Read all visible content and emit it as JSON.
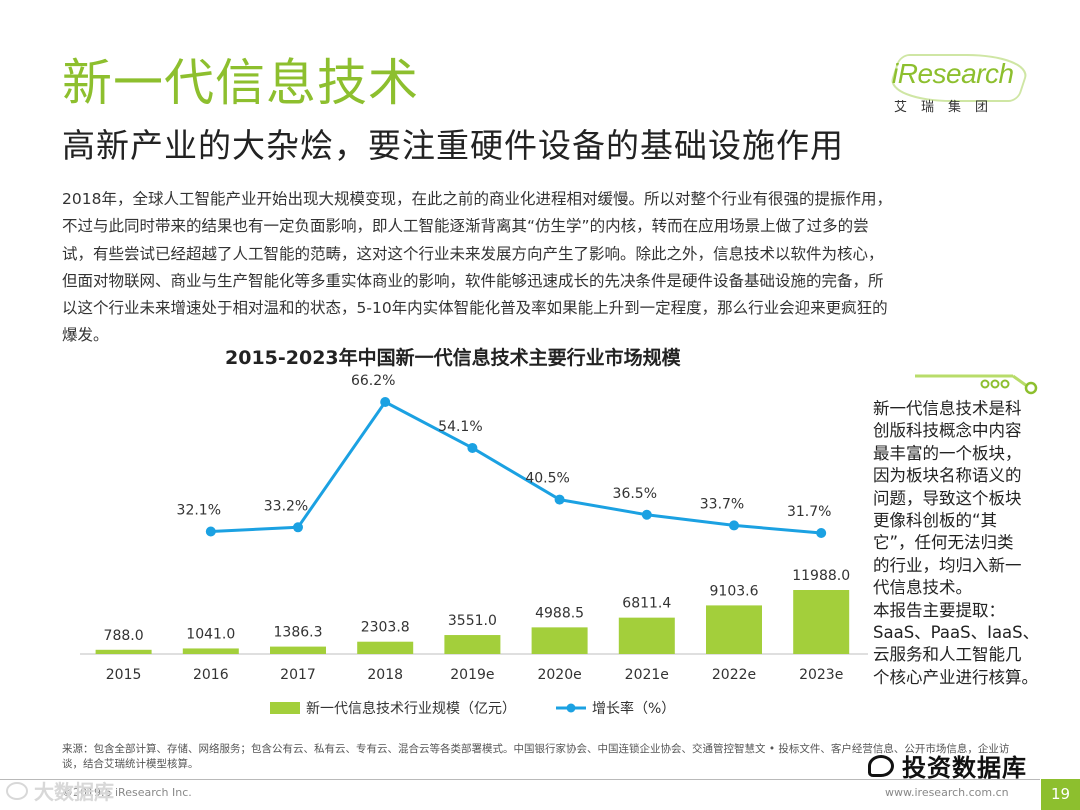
{
  "header": {
    "title": "新一代信息技术",
    "subtitle": "高新产业的大杂烩，要注重硬件设备的基础设施作用"
  },
  "logo": {
    "word": "iResearch",
    "sub": "艾瑞集团"
  },
  "intro": {
    "lines": [
      "2018年，全球人工智能产业开始出现大规模变现，在此之前的商业化进程相对缓慢。所以对整个行业有很强的提振作用，",
      "不过与此同时带来的结果也有一定负面影响，即人工智能逐渐背离其“仿生学”的内核，转而在应用场景上做了过多的尝",
      "试，有些尝试已经超越了人工智能的范畴，这对这个行业未来发展方向产生了影响。除此之外，信息技术以软件为核心，",
      "但面对物联网、商业与生产智能化等多重实体商业的影响，软件能够迅速成长的先决条件是硬件设备基础设施的完备，所",
      "以这个行业未来增速处于相对温和的状态，5-10年内实体智能化普及率如果能上升到一定程度，那么行业会迎来更疯狂的",
      "爆发。"
    ]
  },
  "chart_data": {
    "type": "bar",
    "title": "2015-2023年中国新一代信息技术主要行业市场规模",
    "categories": [
      "2015",
      "2016",
      "2017",
      "2018",
      "2019e",
      "2020e",
      "2021e",
      "2022e",
      "2023e"
    ],
    "series": [
      {
        "name": "新一代信息技术行业规模（亿元）",
        "type": "bar",
        "values": [
          788.0,
          1041.0,
          1386.3,
          2303.8,
          3551.0,
          4988.5,
          6811.4,
          9103.6,
          11988.0
        ],
        "labels": [
          "788.0",
          "1041.0",
          "1386.3",
          "2303.8",
          "3551.0",
          "4988.5",
          "6811.4",
          "9103.6",
          "11988.0"
        ]
      },
      {
        "name": "增长率（%）",
        "type": "line",
        "values": [
          32.1,
          33.2,
          66.2,
          54.1,
          40.5,
          36.5,
          33.7,
          31.7
        ],
        "x": [
          "2016",
          "2017",
          "2018",
          "2019e",
          "2020e",
          "2021e",
          "2022e",
          "2023e"
        ],
        "labels": [
          "32.1%",
          "33.2%",
          "66.2%",
          "54.1%",
          "40.5%",
          "36.5%",
          "33.7%",
          "31.7%"
        ]
      }
    ],
    "legend": "bottom",
    "colors": {
      "bar": "#a3cf3b",
      "line": "#1ba1e2",
      "axis": "#bfbfbf",
      "text": "#333333"
    }
  },
  "side_note": {
    "lines": [
      "新一代信息技术是科",
      "创版科技概念中内容",
      "最丰富的一个板块，",
      "因为板块名称语义的",
      "问题，导致这个板块",
      "更像科创板的“其",
      "它”，任何无法归类",
      "的行业，均归入新一",
      "代信息技术。",
      "本报告主要提取：",
      "SaaS、PaaS、IaaS、",
      "云服务和人工智能几",
      "个核心产业进行核算。"
    ]
  },
  "source": {
    "text": "来源：包含全部计算、存储、网络服务；包含公有云、私有云、专有云、混合云等各类部署模式。中国银行家协会、中国连锁企业协会、交通管控智慧文 • 投标文件、客户经营信息、公开市场信息，企业访谈，结合艾瑞统计模型核算。"
  },
  "footer": {
    "copyright": "©2019.6 iResearch Inc.",
    "website": "www.iresearch.com.cn",
    "page_number": "19"
  },
  "watermarks": {
    "right": "投资数据库",
    "left": "大数据库"
  },
  "accent_color": "#8dbf2e"
}
